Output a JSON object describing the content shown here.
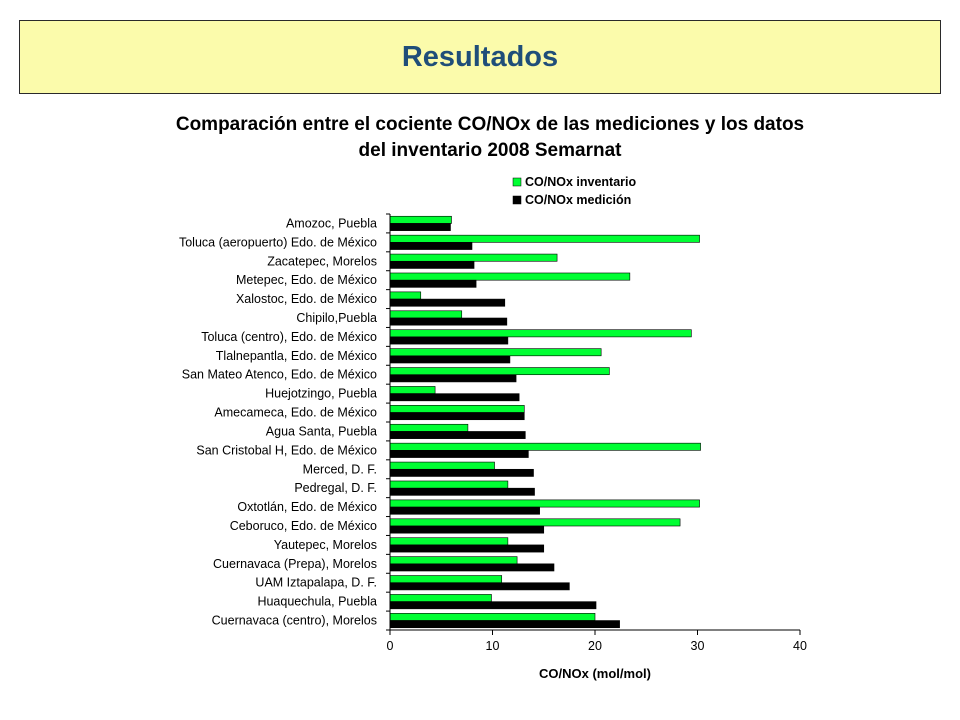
{
  "slide": {
    "title": "Resultados",
    "subtitle_line1": "Comparación entre el cociente CO/NOx de las mediciones y los datos",
    "subtitle_line2": "del inventario 2008 Semarnat"
  },
  "colors": {
    "banner_bg": "#fbfbab",
    "title": "#1f4e79",
    "inventario": "#00ff33",
    "medicion": "#000000"
  },
  "chart_data": {
    "type": "bar",
    "orientation": "horizontal",
    "categories": [
      "Amozoc, Puebla",
      "Toluca (aeropuerto) Edo. de México",
      "Zacatepec, Morelos",
      "Metepec, Edo. de México",
      "Xalostoc, Edo. de México",
      "Chipilo,Puebla",
      "Toluca (centro), Edo. de México",
      "Tlalnepantla, Edo. de México",
      "San Mateo Atenco, Edo. de México",
      "Huejotzingo, Puebla",
      "Amecameca, Edo. de México",
      "Agua Santa, Puebla",
      "San Cristobal H, Edo. de México",
      "Merced, D. F.",
      "Pedregal, D. F.",
      "Oxtotlán, Edo. de México",
      "Ceboruco, Edo. de México",
      "Yautepec, Morelos",
      "Cuernavaca (Prepa), Morelos",
      "UAM Iztapalapa, D. F.",
      "Huaquechula, Puebla",
      "Cuernavaca (centro), Morelos"
    ],
    "series": [
      {
        "name": "CO/NOx inventario",
        "values": [
          6.0,
          30.2,
          16.3,
          23.4,
          3.0,
          7.0,
          29.4,
          20.6,
          21.4,
          4.4,
          13.1,
          7.6,
          30.3,
          10.2,
          11.5,
          30.2,
          28.3,
          11.5,
          12.4,
          10.9,
          9.9,
          20.0
        ]
      },
      {
        "name": "CO/NOx medición",
        "values": [
          5.9,
          8.0,
          8.2,
          8.4,
          11.2,
          11.4,
          11.5,
          11.7,
          12.3,
          12.6,
          13.1,
          13.2,
          13.5,
          14.0,
          14.1,
          14.6,
          15.0,
          15.0,
          16.0,
          17.5,
          20.1,
          22.4
        ]
      }
    ],
    "xlabel": "CO/NOx (mol/mol)",
    "ylabel": "",
    "xlim": [
      0,
      40
    ],
    "xticks": [
      0,
      10,
      20,
      30,
      40
    ],
    "grid": false,
    "legend_placement": "top-center"
  }
}
